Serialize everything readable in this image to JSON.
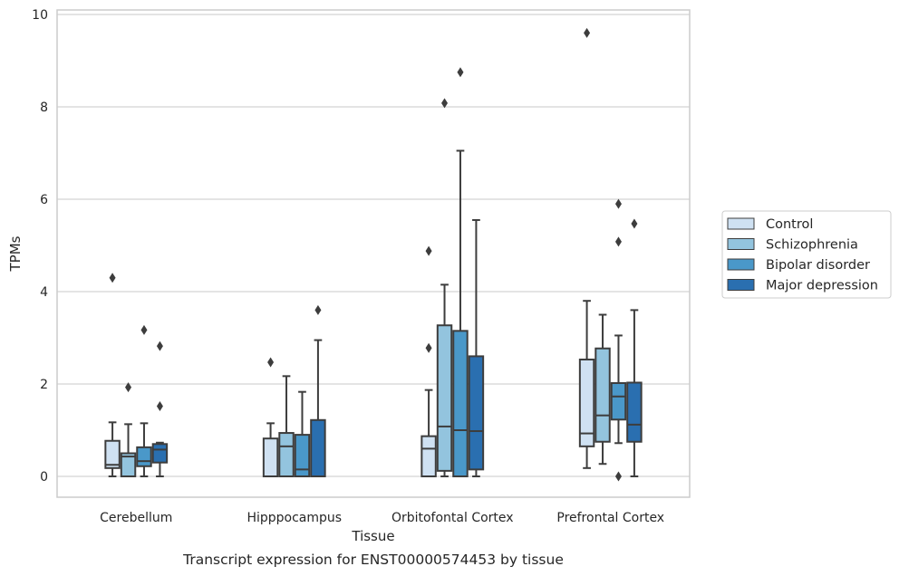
{
  "chart_data": {
    "type": "box",
    "title": "",
    "caption": "Transcript expression for ENST00000574453 by tissue",
    "xlabel": "Tissue",
    "ylabel": "TPMs",
    "ylim": [
      -0.45,
      10.1
    ],
    "yticks": [
      0,
      2,
      4,
      6,
      8,
      10
    ],
    "grid": "horizontal",
    "legend_position": "right",
    "categories": [
      "Cerebellum",
      "Hipppocampus",
      "Orbitofontal Cortex",
      "Prefrontal Cortex"
    ],
    "series": [
      {
        "name": "Control",
        "color": "#cfe1f2",
        "boxes": [
          {
            "whislo": 0.0,
            "q1": 0.18,
            "med": 0.25,
            "q3": 0.77,
            "whishi": 1.17,
            "fliers": [
              4.3
            ]
          },
          {
            "whislo": 0.0,
            "q1": 0.0,
            "med": 0.0,
            "q3": 0.82,
            "whishi": 1.15,
            "fliers": [
              2.47
            ]
          },
          {
            "whislo": 0.0,
            "q1": 0.0,
            "med": 0.6,
            "q3": 0.87,
            "whishi": 1.87,
            "fliers": [
              2.78,
              4.88
            ]
          },
          {
            "whislo": 0.18,
            "q1": 0.65,
            "med": 0.93,
            "q3": 2.53,
            "whishi": 3.8,
            "fliers": [
              9.6
            ]
          }
        ]
      },
      {
        "name": "Schizophrenia",
        "color": "#93c4de",
        "boxes": [
          {
            "whislo": 0.0,
            "q1": 0.0,
            "med": 0.43,
            "q3": 0.5,
            "whishi": 1.13,
            "fliers": [
              1.93
            ]
          },
          {
            "whislo": 0.0,
            "q1": 0.0,
            "med": 0.65,
            "q3": 0.94,
            "whishi": 2.17,
            "fliers": []
          },
          {
            "whislo": 0.0,
            "q1": 0.12,
            "med": 1.08,
            "q3": 3.27,
            "whishi": 4.15,
            "fliers": [
              8.08
            ]
          },
          {
            "whislo": 0.27,
            "q1": 0.75,
            "med": 1.32,
            "q3": 2.77,
            "whishi": 3.5,
            "fliers": []
          }
        ]
      },
      {
        "name": "Bipolar disorder",
        "color": "#4a98c9",
        "boxes": [
          {
            "whislo": 0.0,
            "q1": 0.22,
            "med": 0.33,
            "q3": 0.63,
            "whishi": 1.15,
            "fliers": [
              3.17
            ]
          },
          {
            "whislo": 0.0,
            "q1": 0.0,
            "med": 0.15,
            "q3": 0.9,
            "whishi": 1.83,
            "fliers": []
          },
          {
            "whislo": 0.0,
            "q1": 0.0,
            "med": 1.0,
            "q3": 3.15,
            "whishi": 7.05,
            "fliers": [
              8.75
            ]
          },
          {
            "whislo": 0.72,
            "q1": 1.23,
            "med": 1.73,
            "q3": 2.02,
            "whishi": 3.05,
            "fliers": [
              0.0,
              5.08,
              5.9
            ]
          }
        ]
      },
      {
        "name": "Major depression",
        "color": "#2a6fb0",
        "boxes": [
          {
            "whislo": 0.0,
            "q1": 0.3,
            "med": 0.58,
            "q3": 0.7,
            "whishi": 0.73,
            "fliers": [
              1.52,
              2.82
            ]
          },
          {
            "whislo": 0.0,
            "q1": 0.0,
            "med": 0.0,
            "q3": 1.22,
            "whishi": 2.95,
            "fliers": [
              3.6
            ]
          },
          {
            "whislo": 0.0,
            "q1": 0.15,
            "med": 0.98,
            "q3": 2.6,
            "whishi": 5.55,
            "fliers": []
          },
          {
            "whislo": 0.0,
            "q1": 0.75,
            "med": 1.12,
            "q3": 2.03,
            "whishi": 3.6,
            "fliers": [
              5.47
            ]
          }
        ]
      }
    ]
  }
}
